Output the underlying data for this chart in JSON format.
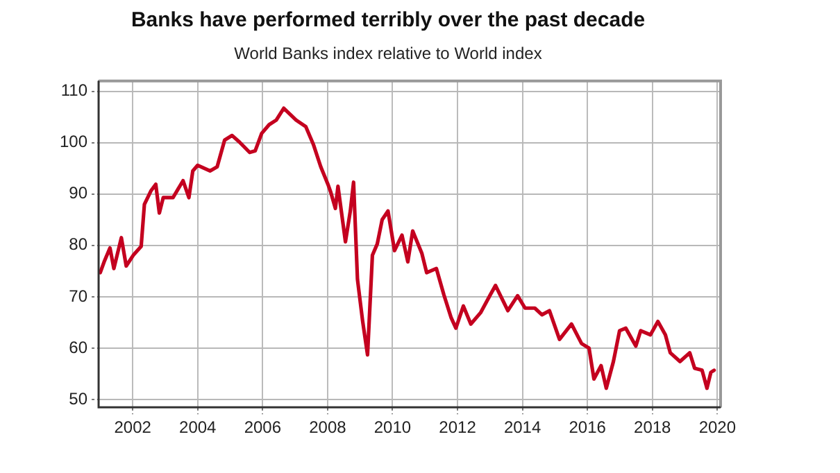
{
  "chart_data": {
    "type": "line",
    "title": "Banks have performed terribly over the past decade",
    "subtitle": "World Banks index relative to World index",
    "x": [
      2001.0,
      2001.12,
      2001.3,
      2001.42,
      2001.65,
      2001.8,
      2002.03,
      2002.26,
      2002.36,
      2002.56,
      2002.71,
      2002.82,
      2002.94,
      2003.24,
      2003.55,
      2003.73,
      2003.85,
      2004.0,
      2004.38,
      2004.6,
      2004.83,
      2005.06,
      2005.29,
      2005.6,
      2005.77,
      2005.97,
      2006.2,
      2006.42,
      2006.65,
      2006.88,
      2007.03,
      2007.33,
      2007.56,
      2007.79,
      2008.01,
      2008.09,
      2008.24,
      2008.32,
      2008.55,
      2008.7,
      2008.8,
      2008.92,
      2009.08,
      2009.23,
      2009.38,
      2009.53,
      2009.68,
      2009.86,
      2010.06,
      2010.29,
      2010.47,
      2010.62,
      2010.9,
      2011.05,
      2011.35,
      2011.58,
      2011.8,
      2011.95,
      2012.18,
      2012.41,
      2012.71,
      2013.01,
      2013.17,
      2013.55,
      2013.85,
      2014.08,
      2014.38,
      2014.6,
      2014.83,
      2015.14,
      2015.51,
      2015.82,
      2016.05,
      2016.2,
      2016.42,
      2016.58,
      2016.8,
      2016.99,
      2017.18,
      2017.49,
      2017.64,
      2017.94,
      2018.17,
      2018.4,
      2018.55,
      2018.85,
      2019.15,
      2019.3,
      2019.53,
      2019.68,
      2019.8,
      2019.9
    ],
    "series": [
      {
        "color": "#c4001f",
        "values": [
          74.7,
          76.8,
          79.5,
          75.5,
          81.5,
          76,
          78.2,
          79.8,
          88,
          90.6,
          91.9,
          86.3,
          89.3,
          89.3,
          92.6,
          89.3,
          94.5,
          95.6,
          94.5,
          95.3,
          100.5,
          101.4,
          100.1,
          98.1,
          98.4,
          101.8,
          103.5,
          104.4,
          106.7,
          105.3,
          104.4,
          103.1,
          99.7,
          95.3,
          91.9,
          90.5,
          87.2,
          91.5,
          80.7,
          86.7,
          92.3,
          73.4,
          65.2,
          58.7,
          78.1,
          80.3,
          85,
          86.7,
          79,
          82,
          76.8,
          82.8,
          78.5,
          74.7,
          75.5,
          70.4,
          66,
          63.9,
          68.2,
          64.7,
          66.9,
          70.4,
          72.2,
          67.3,
          70.2,
          67.8,
          67.8,
          66.5,
          67.3,
          61.7,
          64.7,
          60.9,
          60,
          54,
          56.6,
          52.2,
          57.4,
          63.4,
          63.9,
          60.4,
          63.4,
          62.6,
          65.2,
          62.6,
          59.1,
          57.4,
          59.1,
          56.1,
          55.7,
          52.2,
          55.3,
          55.7
        ]
      }
    ],
    "xlim": [
      2000.95,
      2020.1
    ],
    "xticks": [
      2002,
      2004,
      2006,
      2008,
      2010,
      2012,
      2014,
      2016,
      2018,
      2020
    ],
    "ylim": [
      48.5,
      112
    ],
    "yticks": [
      50,
      60,
      70,
      80,
      90,
      100,
      110
    ],
    "grid": true,
    "legend": false,
    "marker": "none",
    "line_style": "solid"
  }
}
